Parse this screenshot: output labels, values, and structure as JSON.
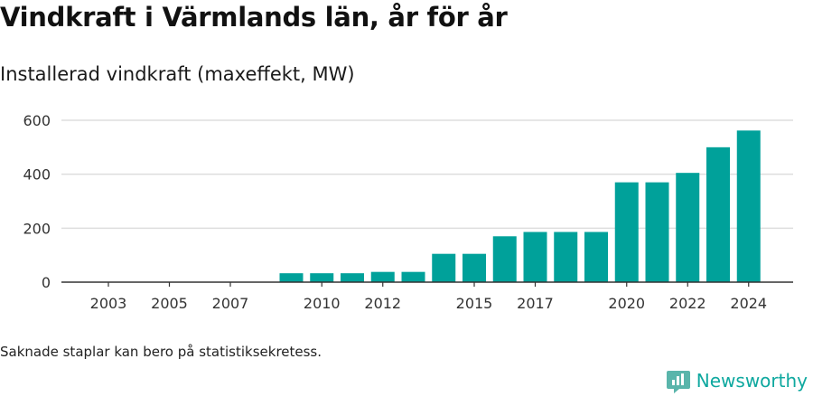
{
  "title": "Vindkraft i Värmlands län, år för år",
  "subtitle": "Installerad vindkraft (maxeffekt, MW)",
  "footnote": "Saknade staplar kan bero på statistiksekretess.",
  "brand": {
    "name": "Newsworthy",
    "icon": "newsworthy-logo-icon",
    "color": "#0ea89f"
  },
  "chart_data": {
    "type": "bar",
    "title": "",
    "xlabel": "",
    "ylabel": "",
    "categories": [
      "2003",
      "2004",
      "2005",
      "2006",
      "2007",
      "2008",
      "2009",
      "2010",
      "2011",
      "2012",
      "2013",
      "2014",
      "2015",
      "2016",
      "2017",
      "2018",
      "2019",
      "2020",
      "2021",
      "2022",
      "2023",
      "2024"
    ],
    "values": [
      null,
      null,
      null,
      null,
      null,
      null,
      33,
      33,
      33,
      38,
      38,
      105,
      105,
      170,
      186,
      186,
      186,
      370,
      370,
      405,
      500,
      562
    ],
    "x_tick_labels": [
      "2003",
      "2005",
      "2007",
      "2010",
      "2012",
      "2015",
      "2017",
      "2020",
      "2022",
      "2024"
    ],
    "ylim": [
      0,
      600
    ],
    "y_ticks": [
      0,
      200,
      400,
      600
    ],
    "grid": true,
    "bar_color": "#00a19a",
    "gridline_color": "#dddddd",
    "axis_color": "#333333"
  }
}
